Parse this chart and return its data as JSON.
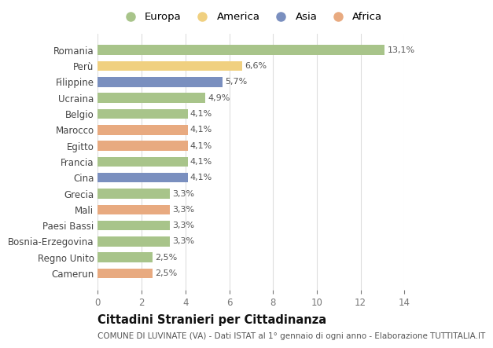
{
  "categories": [
    "Camerun",
    "Regno Unito",
    "Bosnia-Erzegovina",
    "Paesi Bassi",
    "Mali",
    "Grecia",
    "Cina",
    "Francia",
    "Egitto",
    "Marocco",
    "Belgio",
    "Ucraina",
    "Filippine",
    "Perù",
    "Romania"
  ],
  "values": [
    2.5,
    2.5,
    3.3,
    3.3,
    3.3,
    3.3,
    4.1,
    4.1,
    4.1,
    4.1,
    4.1,
    4.9,
    5.7,
    6.6,
    13.1
  ],
  "labels": [
    "2,5%",
    "2,5%",
    "3,3%",
    "3,3%",
    "3,3%",
    "3,3%",
    "4,1%",
    "4,1%",
    "4,1%",
    "4,1%",
    "4,1%",
    "4,9%",
    "5,7%",
    "6,6%",
    "13,1%"
  ],
  "colors": [
    "#e8aa80",
    "#a8c48a",
    "#a8c48a",
    "#a8c48a",
    "#e8aa80",
    "#a8c48a",
    "#7a8fbf",
    "#a8c48a",
    "#e8aa80",
    "#e8aa80",
    "#a8c48a",
    "#a8c48a",
    "#7a8fbf",
    "#f0d080",
    "#a8c48a"
  ],
  "legend_labels": [
    "Europa",
    "America",
    "Asia",
    "Africa"
  ],
  "legend_colors": [
    "#a8c48a",
    "#f0d080",
    "#7a8fbf",
    "#e8aa80"
  ],
  "title": "Cittadini Stranieri per Cittadinanza",
  "subtitle": "COMUNE DI LUVINATE (VA) - Dati ISTAT al 1° gennaio di ogni anno - Elaborazione TUTTITALIA.IT",
  "xlim": [
    0,
    14
  ],
  "xticks": [
    0,
    2,
    4,
    6,
    8,
    10,
    12,
    14
  ],
  "background_color": "#ffffff",
  "grid_color": "#dddddd",
  "bar_height": 0.62,
  "title_fontsize": 10.5,
  "subtitle_fontsize": 7.5,
  "label_fontsize": 8,
  "tick_fontsize": 8.5,
  "legend_fontsize": 9.5
}
